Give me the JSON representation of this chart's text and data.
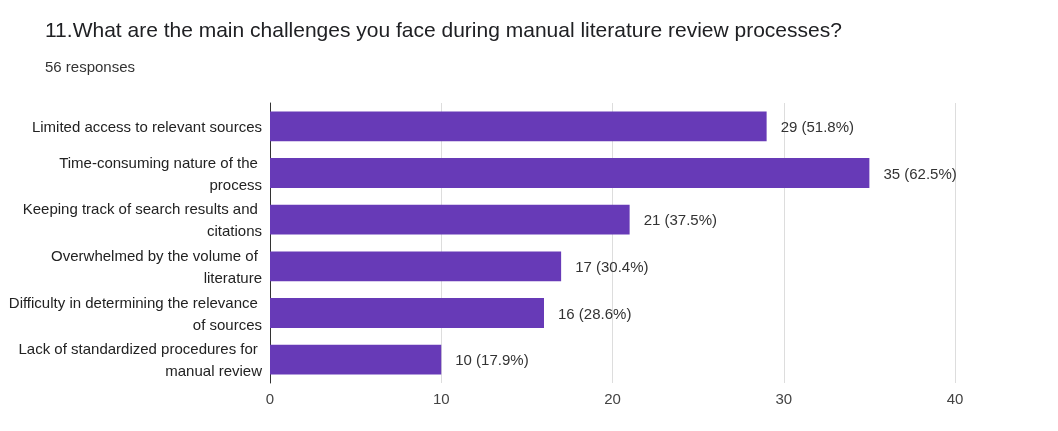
{
  "chart_data": {
    "type": "bar",
    "orientation": "horizontal",
    "title": "11.What are the main challenges you face during manual literature review processes?",
    "subtitle": "56 responses",
    "categories": [
      "Limited access to relevant sources",
      "Time-consuming nature of the process",
      "Keeping track of search results and citations",
      "Overwhelmed by the volume of literature",
      "Difficulty in determining the relevance of sources",
      "Lack of standardized procedures for manual review"
    ],
    "values": [
      29,
      35,
      21,
      17,
      16,
      10
    ],
    "value_labels": [
      "29 (51.8%)",
      "35 (62.5%)",
      "21 (37.5%)",
      "17 (30.4%)",
      "16 (28.6%)",
      "10 (17.9%)"
    ],
    "color": "#673ab7",
    "xlim": [
      0,
      40
    ],
    "xticks": [
      0,
      10,
      20,
      30,
      40
    ],
    "grid": "x"
  }
}
